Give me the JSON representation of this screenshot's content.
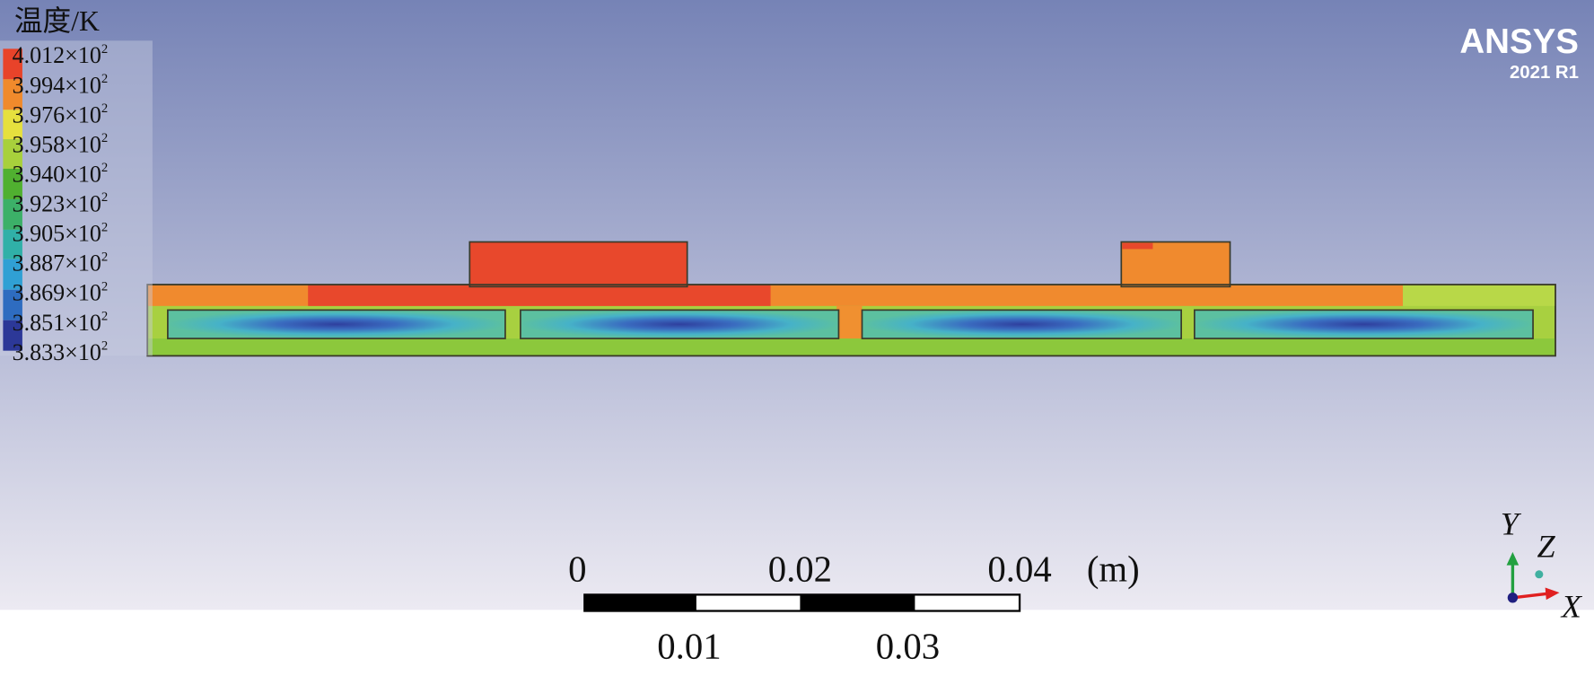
{
  "legend": {
    "title": "温度/K",
    "levels": [
      {
        "mantissa": "4.012×10",
        "exponent": "2"
      },
      {
        "mantissa": "3.994×10",
        "exponent": "2"
      },
      {
        "mantissa": "3.976×10",
        "exponent": "2"
      },
      {
        "mantissa": "3.958×10",
        "exponent": "2"
      },
      {
        "mantissa": "3.940×10",
        "exponent": "2"
      },
      {
        "mantissa": "3.923×10",
        "exponent": "2"
      },
      {
        "mantissa": "3.905×10",
        "exponent": "2"
      },
      {
        "mantissa": "3.887×10",
        "exponent": "2"
      },
      {
        "mantissa": "3.869×10",
        "exponent": "2"
      },
      {
        "mantissa": "3.851×10",
        "exponent": "2"
      },
      {
        "mantissa": "3.833×10",
        "exponent": "2"
      }
    ]
  },
  "logo": {
    "brand": "ANSYS",
    "version": "2021 R1"
  },
  "scale_bar": {
    "top_labels": [
      "0",
      "0.02",
      "0.04"
    ],
    "unit": "(m)",
    "bottom_labels": [
      "0.01",
      "0.03"
    ]
  },
  "triad": {
    "y": "Y",
    "z": "Z",
    "x": "X"
  }
}
